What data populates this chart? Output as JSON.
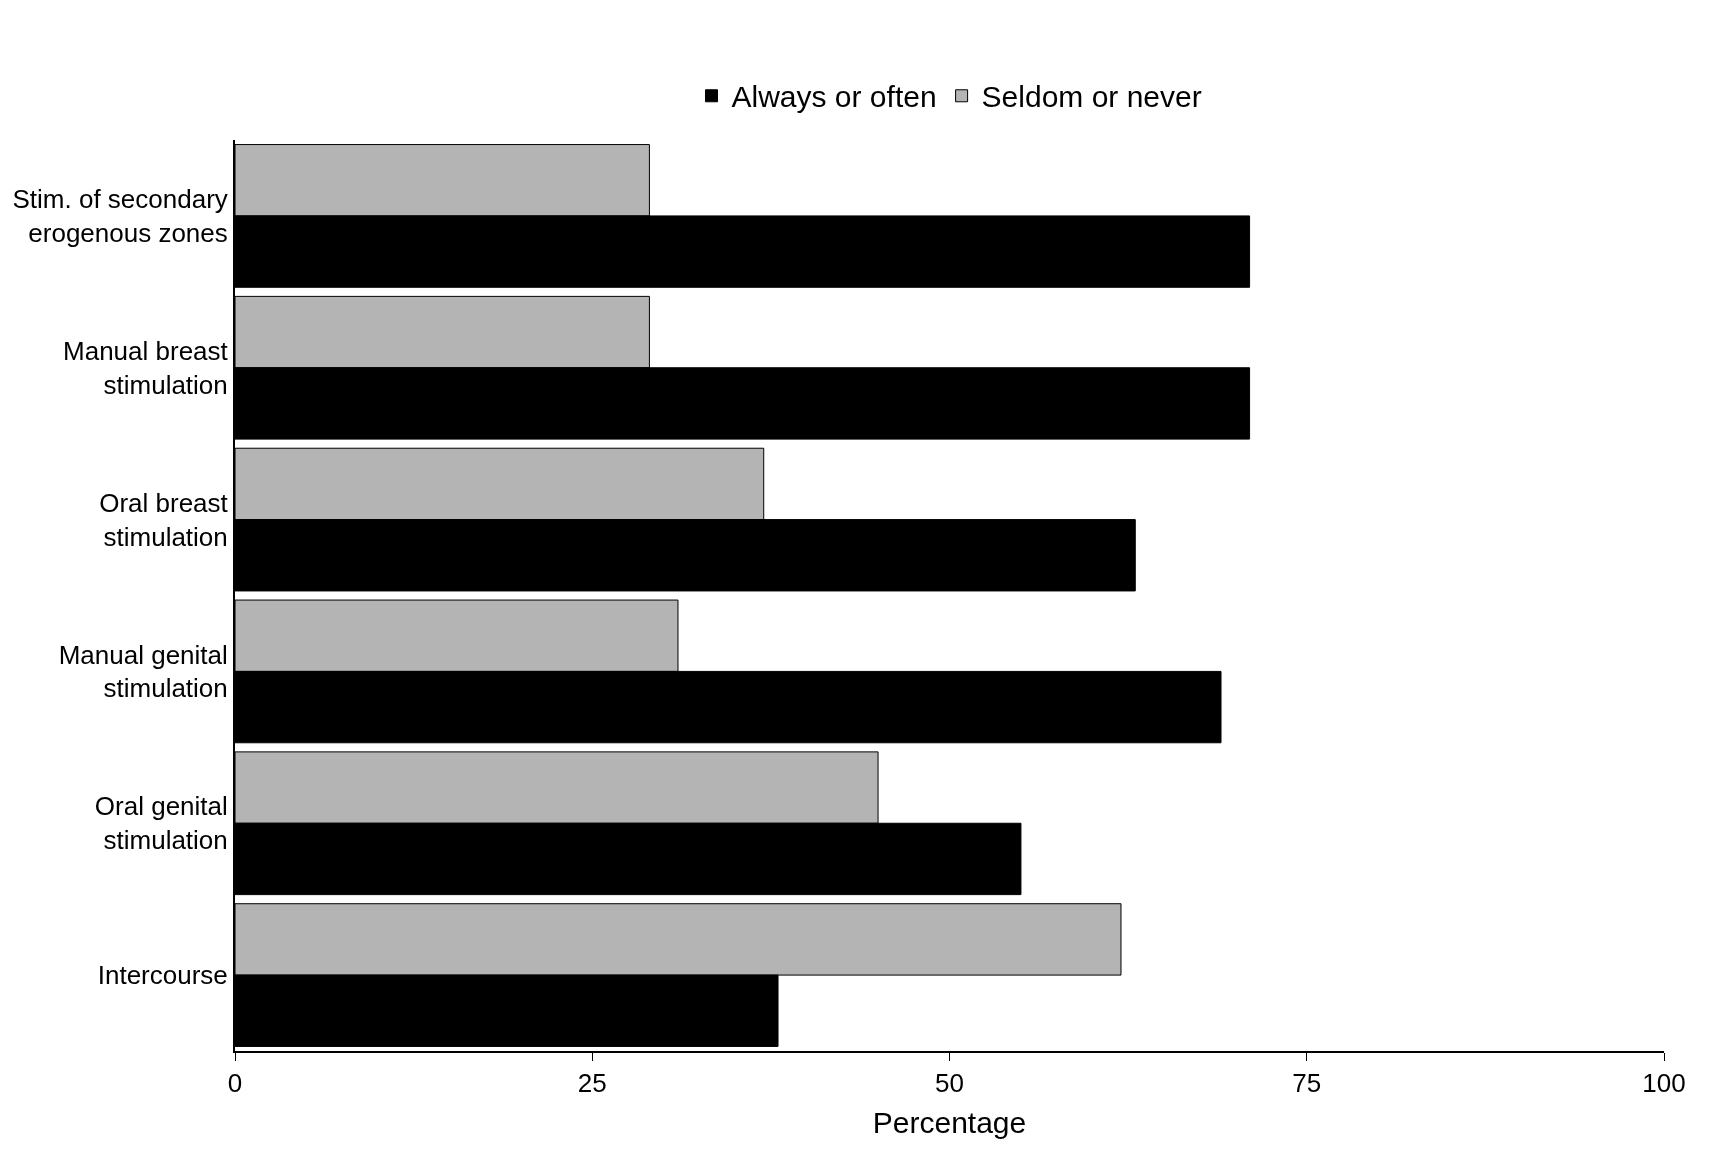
{
  "chart_data": {
    "type": "bar",
    "orientation": "horizontal",
    "xlabel": "Percentage",
    "categories": [
      "Stim. of secondary erogenous zones",
      "Manual breast stimulation",
      "Oral breast stimulation",
      "Manual genital stimulation",
      "Oral genital stimulation",
      "Intercourse"
    ],
    "series": [
      {
        "name": "Always or often",
        "color": "#000000",
        "values": [
          71,
          71,
          63,
          69,
          55,
          38
        ]
      },
      {
        "name": "Seldom or never",
        "color": "#b4b4b4",
        "values": [
          29,
          29,
          37,
          31,
          45,
          62
        ]
      }
    ],
    "xlim": [
      0,
      100
    ],
    "xticks": [
      0,
      25,
      50,
      75,
      100
    ],
    "legend": "top"
  }
}
